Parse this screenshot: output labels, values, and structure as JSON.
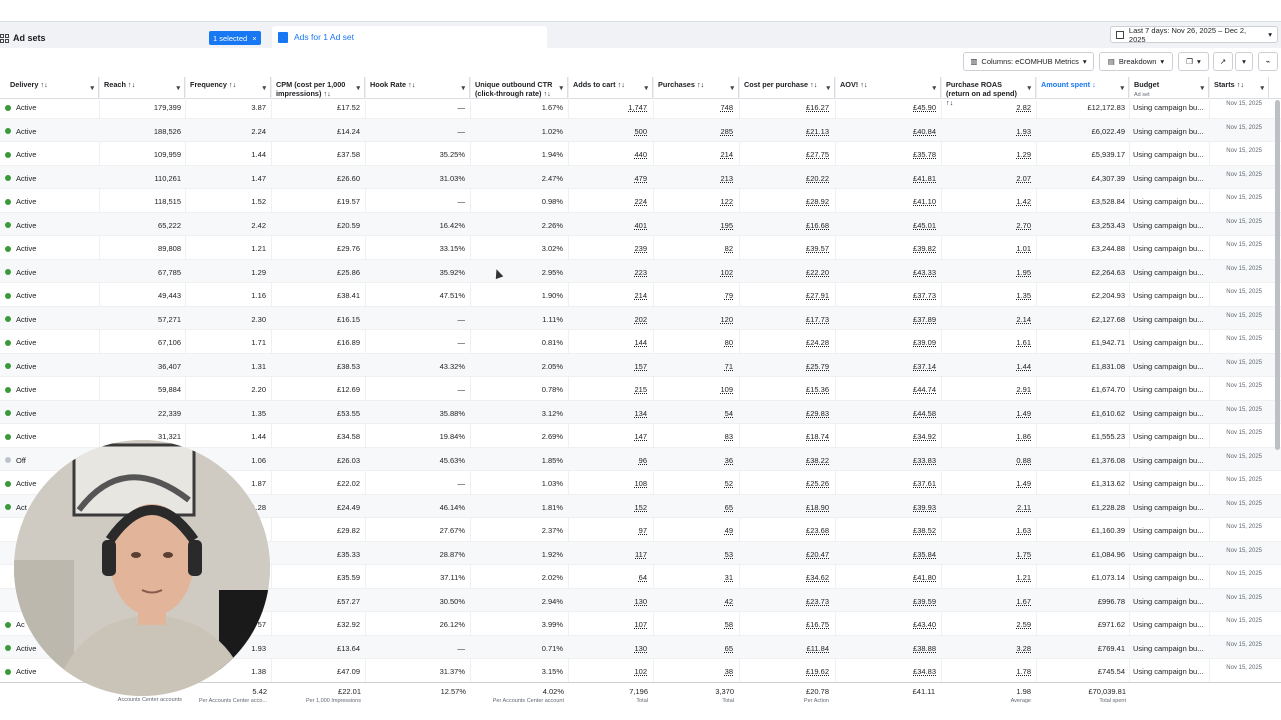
{
  "header": {
    "adsets_label": "Ad sets",
    "selected_badge": "1 selected",
    "selected_close": "×",
    "ads_tab": "Ads for 1 Ad set",
    "date_range": "Last 7 days: Nov 26, 2025 – Dec 2, 2025"
  },
  "toolbar": {
    "columns": "Columns: eCOMHUB Metrics",
    "breakdown": "Breakdown"
  },
  "columns": {
    "delivery": "Delivery ↑↓",
    "reach": "Reach ↑↓",
    "frequency": "Frequency ↑↓",
    "cpm": "CPM (cost per 1,000 impressions) ↑↓",
    "hook": "Hook Rate ↑↓",
    "ctr": "Unique outbound CTR (click-through rate) ↑↓",
    "atc": "Adds to cart ↑↓",
    "purchases": "Purchases ↑↓",
    "cpp": "Cost per purchase ↑↓",
    "aov": "AOV! ↑↓",
    "roas": "Purchase ROAS (return on ad spend) ↑↓",
    "spent": "Amount spent ↓",
    "budget": "Budget",
    "budget_sub": "Ad set",
    "starts": "Starts ↑↓"
  },
  "rows": [
    {
      "delivery": "Active",
      "reach": "179,399",
      "frequency": "3.87",
      "cpm": "£17.52",
      "hook": "—",
      "ctr": "1.67%",
      "atc": "1,747",
      "purchases": "748",
      "cpp": "£16.27",
      "aov": "£45.90",
      "roas": "2.82",
      "spent": "£12,172.83",
      "budget": "Using campaign bu...",
      "starts": "Nov 15, 2025"
    },
    {
      "delivery": "Active",
      "reach": "188,526",
      "frequency": "2.24",
      "cpm": "£14.24",
      "hook": "—",
      "ctr": "1.02%",
      "atc": "500",
      "purchases": "285",
      "cpp": "£21.13",
      "aov": "£40.84",
      "roas": "1.93",
      "spent": "£6,022.49",
      "budget": "Using campaign bu...",
      "starts": "Nov 15, 2025"
    },
    {
      "delivery": "Active",
      "reach": "109,959",
      "frequency": "1.44",
      "cpm": "£37.58",
      "hook": "35.25%",
      "ctr": "1.94%",
      "atc": "440",
      "purchases": "214",
      "cpp": "£27.75",
      "aov": "£35.78",
      "roas": "1.29",
      "spent": "£5,939.17",
      "budget": "Using campaign bu...",
      "starts": "Nov 15, 2025"
    },
    {
      "delivery": "Active",
      "reach": "110,261",
      "frequency": "1.47",
      "cpm": "£26.60",
      "hook": "31.03%",
      "ctr": "2.47%",
      "atc": "479",
      "purchases": "213",
      "cpp": "£20.22",
      "aov": "£41.81",
      "roas": "2.07",
      "spent": "£4,307.39",
      "budget": "Using campaign bu...",
      "starts": "Nov 15, 2025"
    },
    {
      "delivery": "Active",
      "reach": "118,515",
      "frequency": "1.52",
      "cpm": "£19.57",
      "hook": "—",
      "ctr": "0.98%",
      "atc": "224",
      "purchases": "122",
      "cpp": "£28.92",
      "aov": "£41.10",
      "roas": "1.42",
      "spent": "£3,528.84",
      "budget": "Using campaign bu...",
      "starts": "Nov 15, 2025"
    },
    {
      "delivery": "Active",
      "reach": "65,222",
      "frequency": "2.42",
      "cpm": "£20.59",
      "hook": "16.42%",
      "ctr": "2.26%",
      "atc": "401",
      "purchases": "195",
      "cpp": "£16.68",
      "aov": "£45.01",
      "roas": "2.70",
      "spent": "£3,253.43",
      "budget": "Using campaign bu...",
      "starts": "Nov 15, 2025"
    },
    {
      "delivery": "Active",
      "reach": "89,808",
      "frequency": "1.21",
      "cpm": "£29.76",
      "hook": "33.15%",
      "ctr": "3.02%",
      "atc": "239",
      "purchases": "82",
      "cpp": "£39.57",
      "aov": "£39.82",
      "roas": "1.01",
      "spent": "£3,244.88",
      "budget": "Using campaign bu...",
      "starts": "Nov 15, 2025"
    },
    {
      "delivery": "Active",
      "reach": "67,785",
      "frequency": "1.29",
      "cpm": "£25.86",
      "hook": "35.92%",
      "ctr": "2.95%",
      "atc": "223",
      "purchases": "102",
      "cpp": "£22.20",
      "aov": "£43.33",
      "roas": "1.95",
      "spent": "£2,264.63",
      "budget": "Using campaign bu...",
      "starts": "Nov 15, 2025"
    },
    {
      "delivery": "Active",
      "reach": "49,443",
      "frequency": "1.16",
      "cpm": "£38.41",
      "hook": "47.51%",
      "ctr": "1.90%",
      "atc": "214",
      "purchases": "79",
      "cpp": "£27.91",
      "aov": "£37.73",
      "roas": "1.35",
      "spent": "£2,204.93",
      "budget": "Using campaign bu...",
      "starts": "Nov 15, 2025"
    },
    {
      "delivery": "Active",
      "reach": "57,271",
      "frequency": "2.30",
      "cpm": "£16.15",
      "hook": "—",
      "ctr": "1.11%",
      "atc": "202",
      "purchases": "120",
      "cpp": "£17.73",
      "aov": "£37.89",
      "roas": "2.14",
      "spent": "£2,127.68",
      "budget": "Using campaign bu...",
      "starts": "Nov 15, 2025"
    },
    {
      "delivery": "Active",
      "reach": "67,106",
      "frequency": "1.71",
      "cpm": "£16.89",
      "hook": "—",
      "ctr": "0.81%",
      "atc": "144",
      "purchases": "80",
      "cpp": "£24.28",
      "aov": "£39.09",
      "roas": "1.61",
      "spent": "£1,942.71",
      "budget": "Using campaign bu...",
      "starts": "Nov 15, 2025"
    },
    {
      "delivery": "Active",
      "reach": "36,407",
      "frequency": "1.31",
      "cpm": "£38.53",
      "hook": "43.32%",
      "ctr": "2.05%",
      "atc": "157",
      "purchases": "71",
      "cpp": "£25.79",
      "aov": "£37.14",
      "roas": "1.44",
      "spent": "£1,831.08",
      "budget": "Using campaign bu...",
      "starts": "Nov 15, 2025"
    },
    {
      "delivery": "Active",
      "reach": "59,884",
      "frequency": "2.20",
      "cpm": "£12.69",
      "hook": "—",
      "ctr": "0.78%",
      "atc": "215",
      "purchases": "109",
      "cpp": "£15.36",
      "aov": "£44.74",
      "roas": "2.91",
      "spent": "£1,674.70",
      "budget": "Using campaign bu...",
      "starts": "Nov 15, 2025"
    },
    {
      "delivery": "Active",
      "reach": "22,339",
      "frequency": "1.35",
      "cpm": "£53.55",
      "hook": "35.88%",
      "ctr": "3.12%",
      "atc": "134",
      "purchases": "54",
      "cpp": "£29.83",
      "aov": "£44.58",
      "roas": "1.49",
      "spent": "£1,610.62",
      "budget": "Using campaign bu...",
      "starts": "Nov 15, 2025"
    },
    {
      "delivery": "Active",
      "reach": "31,321",
      "frequency": "1.44",
      "cpm": "£34.58",
      "hook": "19.84%",
      "ctr": "2.69%",
      "atc": "147",
      "purchases": "83",
      "cpp": "£18.74",
      "aov": "£34.92",
      "roas": "1.86",
      "spent": "£1,555.23",
      "budget": "Using campaign bu...",
      "starts": "Nov 15, 2025"
    },
    {
      "delivery": "Off",
      "reach": "",
      "frequency": "1.06",
      "cpm": "£26.03",
      "hook": "45.63%",
      "ctr": "1.85%",
      "atc": "96",
      "purchases": "36",
      "cpp": "£38.22",
      "aov": "£33.83",
      "roas": "0.88",
      "spent": "£1,376.08",
      "budget": "Using campaign bu...",
      "starts": "Nov 15, 2025"
    },
    {
      "delivery": "Active",
      "reach": "",
      "frequency": "1.87",
      "cpm": "£22.02",
      "hook": "—",
      "ctr": "1.03%",
      "atc": "108",
      "purchases": "52",
      "cpp": "£25.26",
      "aov": "£37.61",
      "roas": "1.49",
      "spent": "£1,313.62",
      "budget": "Using campaign bu...",
      "starts": "Nov 15, 2025"
    },
    {
      "delivery": "Act",
      "reach": "",
      "frequency": "1.28",
      "cpm": "£24.49",
      "hook": "46.14%",
      "ctr": "1.81%",
      "atc": "152",
      "purchases": "65",
      "cpp": "£18.90",
      "aov": "£39.93",
      "roas": "2.11",
      "spent": "£1,228.28",
      "budget": "Using campaign bu...",
      "starts": "Nov 15, 2025"
    },
    {
      "delivery": "",
      "reach": "",
      "frequency": "",
      "cpm": "£29.82",
      "hook": "27.67%",
      "ctr": "2.37%",
      "atc": "97",
      "purchases": "49",
      "cpp": "£23.68",
      "aov": "£38.52",
      "roas": "1.63",
      "spent": "£1,160.39",
      "budget": "Using campaign bu...",
      "starts": "Nov 15, 2025"
    },
    {
      "delivery": "",
      "reach": "",
      "frequency": "",
      "cpm": "£35.33",
      "hook": "28.87%",
      "ctr": "1.92%",
      "atc": "117",
      "purchases": "53",
      "cpp": "£20.47",
      "aov": "£35.84",
      "roas": "1.75",
      "spent": "£1,084.96",
      "budget": "Using campaign bu...",
      "starts": "Nov 15, 2025"
    },
    {
      "delivery": "",
      "reach": "",
      "frequency": "",
      "cpm": "£35.59",
      "hook": "37.11%",
      "ctr": "2.02%",
      "atc": "64",
      "purchases": "31",
      "cpp": "£34.62",
      "aov": "£41.80",
      "roas": "1.21",
      "spent": "£1,073.14",
      "budget": "Using campaign bu...",
      "starts": "Nov 15, 2025"
    },
    {
      "delivery": "",
      "reach": "",
      "frequency": "",
      "cpm": "£57.27",
      "hook": "30.50%",
      "ctr": "2.94%",
      "atc": "130",
      "purchases": "42",
      "cpp": "£23.73",
      "aov": "£39.59",
      "roas": "1.67",
      "spent": "£996.78",
      "budget": "Using campaign bu...",
      "starts": "Nov 15, 2025"
    },
    {
      "delivery": "Ac",
      "reach": "",
      "frequency": "57",
      "cpm": "£32.92",
      "hook": "26.12%",
      "ctr": "3.99%",
      "atc": "107",
      "purchases": "58",
      "cpp": "£16.75",
      "aov": "£43.40",
      "roas": "2.59",
      "spent": "£971.62",
      "budget": "Using campaign bu...",
      "starts": "Nov 15, 2025"
    },
    {
      "delivery": "Active",
      "reach": "",
      "frequency": "1.93",
      "cpm": "£13.64",
      "hook": "—",
      "ctr": "0.71%",
      "atc": "130",
      "purchases": "65",
      "cpp": "£11.84",
      "aov": "£38.88",
      "roas": "3.28",
      "spent": "£769.41",
      "budget": "Using campaign bu...",
      "starts": "Nov 15, 2025"
    },
    {
      "delivery": "Active",
      "reach": "",
      "frequency": "1.38",
      "cpm": "£47.09",
      "hook": "31.37%",
      "ctr": "3.15%",
      "atc": "102",
      "purchases": "38",
      "cpp": "£19.62",
      "aov": "£34.83",
      "roas": "1.78",
      "spent": "£745.54",
      "budget": "Using campaign bu...",
      "starts": "Nov 15, 2025"
    }
  ],
  "summary": {
    "reach_sub": "Accounts Center accounts",
    "frequency": "5.42",
    "frequency_sub": "Per Accounts Center acco...",
    "cpm": "£22.01",
    "cpm_sub": "Per 1,000 Impressions",
    "hook": "12.57%",
    "ctr": "4.02%",
    "ctr_sub": "Per Accounts Center account",
    "atc": "7,196",
    "atc_sub": "Total",
    "purchases": "3,370",
    "purchases_sub": "Total",
    "cpp": "£20.78",
    "cpp_sub": "Per Action",
    "aov": "£41.11",
    "roas": "1.98",
    "roas_sub": "Average",
    "spent": "£70,039.81",
    "spent_sub": "Total spent"
  },
  "colors": {
    "accent": "#1877f2",
    "active": "#3a9a3a",
    "off": "#bec3c9"
  }
}
